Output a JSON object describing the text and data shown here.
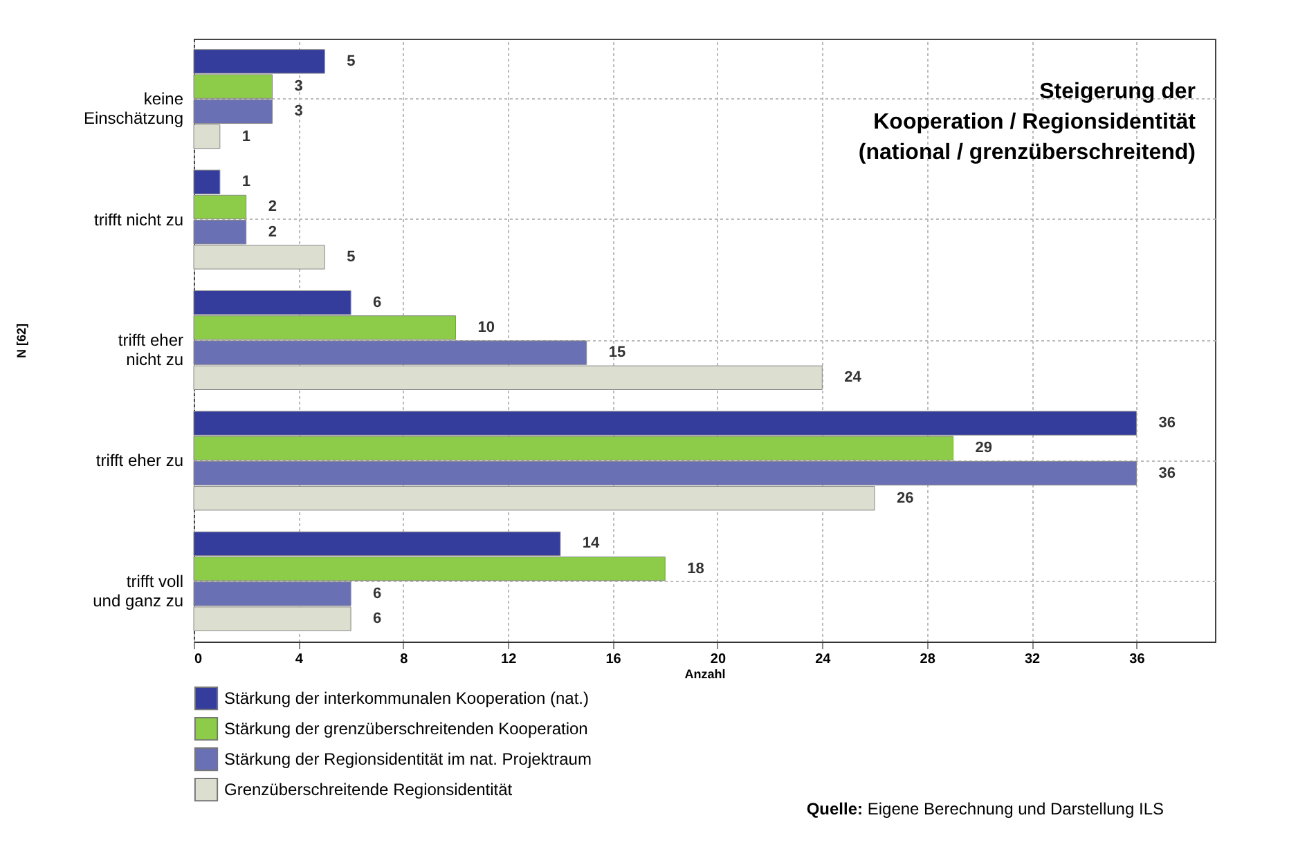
{
  "chart_data": {
    "type": "bar",
    "orientation": "horizontal",
    "title": "Steigerung der\nKooperation / Regionsidentität\n(national / grenzüberschreitend)",
    "xlabel": "Anzahl",
    "ylabel": "N [62]",
    "categories": [
      "keine\nEinschätzung",
      "trifft nicht zu",
      "trifft eher\nnicht zu",
      "trifft eher zu",
      "trifft voll\nund ganz zu"
    ],
    "series": [
      {
        "name": "Stärkung der interkommunalen Kooperation (nat.)",
        "color": "#343c9c",
        "values": [
          5,
          1,
          6,
          36,
          14
        ]
      },
      {
        "name": "Stärkung der grenzüberschreitenden Kooperation",
        "color": "#8ccc48",
        "values": [
          3,
          2,
          10,
          29,
          18
        ]
      },
      {
        "name": "Stärkung der Regionsidentität im nat. Projektraum",
        "color": "#6a70b4",
        "values": [
          3,
          2,
          15,
          36,
          6
        ]
      },
      {
        "name": "Grenzüberschreitende Regionsidentität",
        "color": "#dcdfd0",
        "values": [
          1,
          5,
          24,
          26,
          6
        ]
      }
    ],
    "xlim": [
      0,
      39
    ],
    "xticks": [
      0,
      4,
      8,
      12,
      16,
      20,
      24,
      28,
      32,
      36
    ],
    "grid": true,
    "legend": "bottom left",
    "data_labels": true,
    "annotations": [
      "Quelle: Eigene Berechnung und Darstellung ILS"
    ]
  }
}
